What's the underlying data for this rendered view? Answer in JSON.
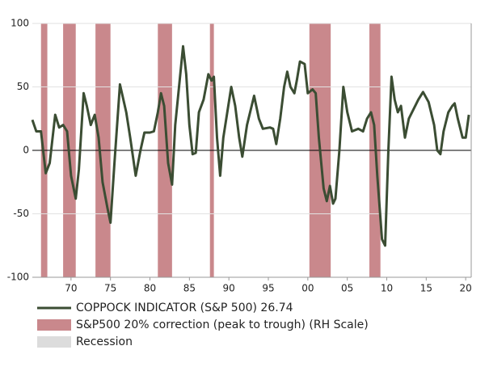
{
  "chart_data": {
    "type": "line",
    "xlim": [
      1965.1,
      2020.7
    ],
    "ylim": [
      -100,
      100
    ],
    "yticks": [
      -100,
      -50,
      0,
      50,
      100
    ],
    "xticks": [
      {
        "value": 1970,
        "label": "70"
      },
      {
        "value": 1975,
        "label": "75"
      },
      {
        "value": 1980,
        "label": "80"
      },
      {
        "value": 1985,
        "label": "85"
      },
      {
        "value": 1990,
        "label": "90"
      },
      {
        "value": 1995,
        "label": "95"
      },
      {
        "value": 2000,
        "label": "00"
      },
      {
        "value": 2005,
        "label": "05"
      },
      {
        "value": 2010,
        "label": "10"
      },
      {
        "value": 2015,
        "label": "15"
      },
      {
        "value": 2020,
        "label": "20"
      }
    ],
    "grid": true,
    "series": [
      {
        "name": "COPPOCK INDICATOR (S&P 500) 26.74",
        "color": "#3b4d33",
        "x": [
          1965.1,
          1965.6,
          1966.2,
          1966.8,
          1967.3,
          1968.0,
          1968.5,
          1969.0,
          1969.5,
          1970.0,
          1970.6,
          1971.0,
          1971.6,
          1972.0,
          1972.5,
          1973.0,
          1973.5,
          1974.0,
          1974.6,
          1975.0,
          1975.5,
          1976.2,
          1977.0,
          1977.5,
          1978.2,
          1978.8,
          1979.3,
          1980.0,
          1980.5,
          1981.0,
          1981.4,
          1981.8,
          1982.3,
          1982.8,
          1983.2,
          1984.2,
          1984.6,
          1985.0,
          1985.4,
          1985.8,
          1986.2,
          1986.8,
          1987.4,
          1987.8,
          1988.1,
          1988.5,
          1988.9,
          1989.3,
          1989.8,
          1990.3,
          1990.8,
          1991.3,
          1991.7,
          1992.3,
          1993.2,
          1993.8,
          1994.3,
          1995.2,
          1995.6,
          1996.0,
          1996.5,
          1997.0,
          1997.4,
          1997.8,
          1998.3,
          1998.6,
          1999.0,
          1999.6,
          2000.0,
          2000.6,
          2001.0,
          2001.4,
          2002.0,
          2002.4,
          2002.8,
          2003.2,
          2003.5,
          2004.0,
          2004.5,
          2005.0,
          2005.6,
          2006.4,
          2007.0,
          2007.5,
          2008.0,
          2008.4,
          2008.8,
          2009.4,
          2009.8,
          2010.2,
          2010.6,
          2011.0,
          2011.4,
          2011.8,
          2012.3,
          2012.8,
          2014.0,
          2014.6,
          2015.3,
          2016.0,
          2016.4,
          2016.8,
          2017.2,
          2017.8,
          2018.3,
          2018.6,
          2019.0,
          2019.6,
          2020.0,
          2020.4
        ],
        "values": [
          24,
          15,
          15,
          -18,
          -10,
          28,
          18,
          20,
          15,
          -20,
          -38,
          -15,
          45,
          35,
          20,
          28,
          10,
          -25,
          -45,
          -57,
          -10,
          52,
          30,
          10,
          -20,
          0,
          14,
          14,
          15,
          30,
          45,
          35,
          -10,
          -27,
          20,
          82,
          60,
          20,
          -3,
          -2,
          30,
          40,
          60,
          55,
          58,
          10,
          -20,
          10,
          30,
          50,
          35,
          10,
          -5,
          20,
          43,
          25,
          17,
          18,
          17,
          5,
          25,
          50,
          62,
          50,
          45,
          55,
          70,
          68,
          45,
          48,
          45,
          10,
          -30,
          -40,
          -28,
          -42,
          -38,
          0,
          50,
          30,
          15,
          17,
          15,
          25,
          30,
          20,
          -20,
          -70,
          -75,
          0,
          58,
          40,
          30,
          35,
          10,
          25,
          40,
          46,
          38,
          20,
          0,
          -3,
          15,
          30,
          35,
          37,
          25,
          10,
          10,
          28
        ]
      }
    ],
    "bands": [
      {
        "name": "S&P500 20% correction (peak to trough) (RH Scale)",
        "color": "#c9888c",
        "ranges": [
          [
            1966.2,
            1967.0
          ],
          [
            1969.0,
            1970.6
          ],
          [
            1973.1,
            1975.0
          ],
          [
            1981.0,
            1982.8
          ],
          [
            1987.6,
            1988.1
          ],
          [
            2000.2,
            2002.9
          ],
          [
            2007.8,
            2009.2
          ]
        ]
      },
      {
        "name": "Recession",
        "color": "#dcdcdc",
        "ranges": []
      }
    ]
  }
}
